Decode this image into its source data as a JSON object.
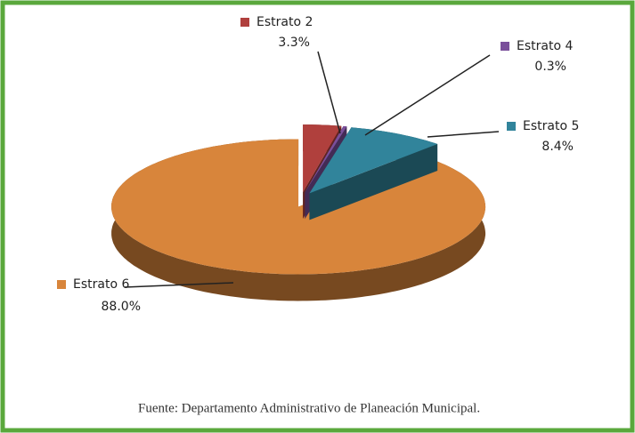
{
  "chart_data": {
    "type": "pie",
    "categories": [
      "Estrato 2",
      "Estrato 4",
      "Estrato 5",
      "Estrato 6"
    ],
    "values": [
      3.3,
      0.3,
      8.4,
      88.0
    ],
    "value_labels": [
      "3.3%",
      "0.3%",
      "8.4%",
      "88.0%"
    ],
    "colors": [
      "#b0403d",
      "#7a4f9b",
      "#31849b",
      "#d8853b"
    ],
    "source": "Fuente: Departamento Administrativo de Planeación Municipal."
  }
}
